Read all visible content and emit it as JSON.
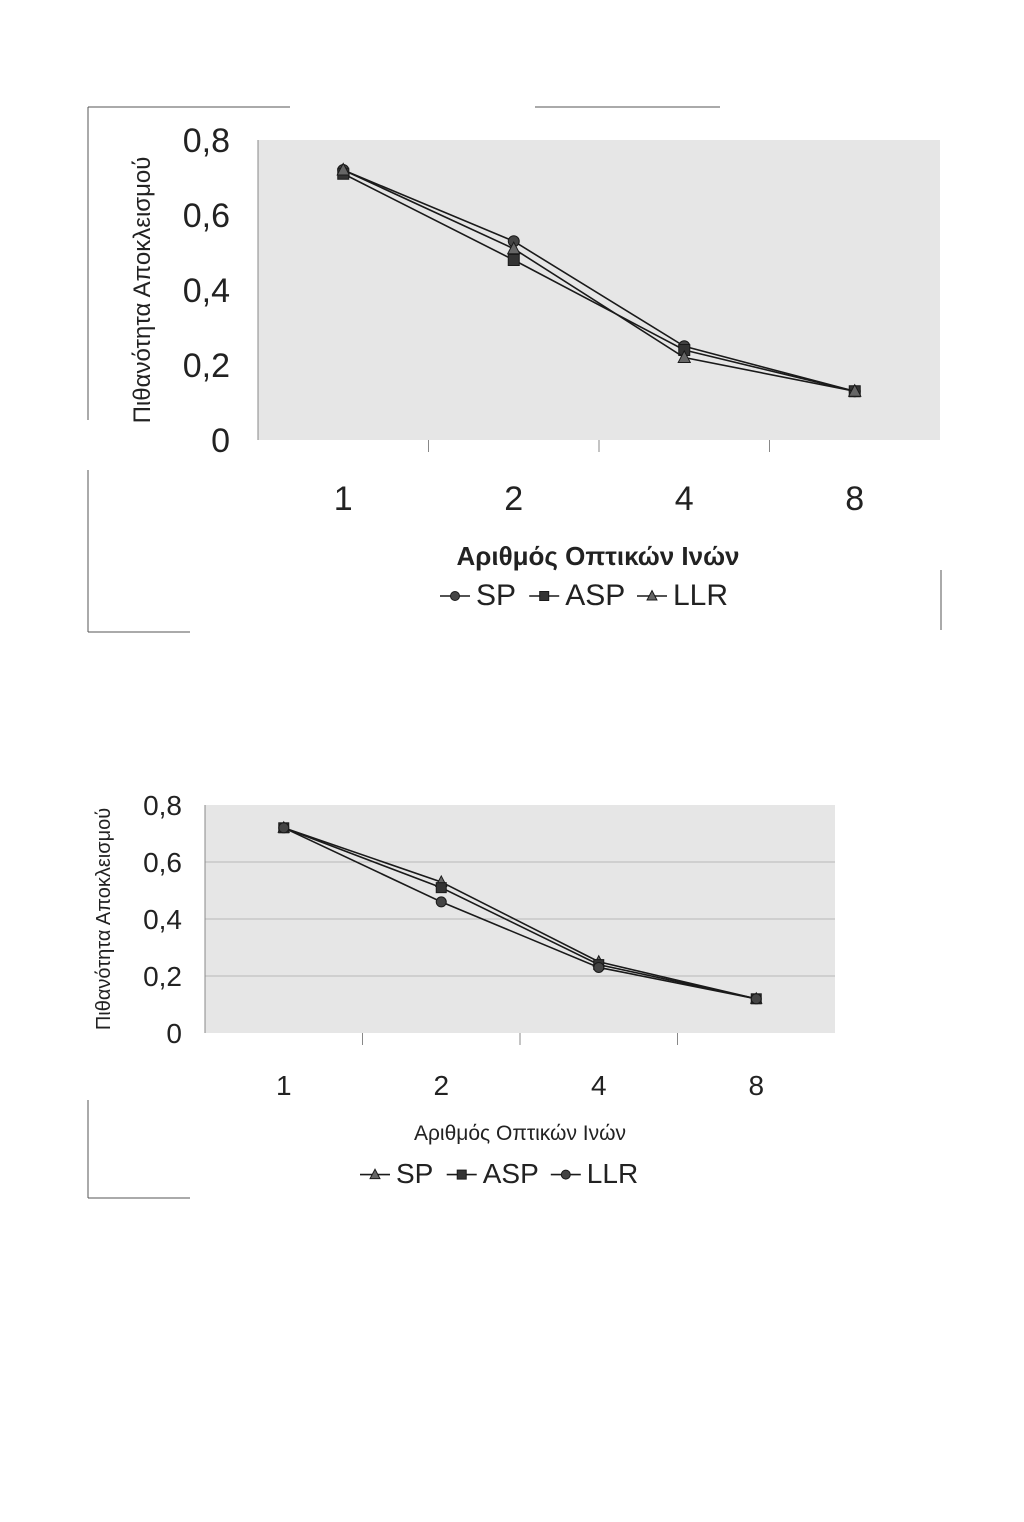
{
  "chart_data": [
    {
      "type": "line",
      "title": "",
      "xlabel": "Αριθμός Οπτικών Ινών",
      "ylabel": "Πιθανότητα Αποκλεισμού",
      "categories": [
        "1",
        "2",
        "4",
        "8"
      ],
      "ylim": [
        0,
        0.8
      ],
      "yticks": [
        "0",
        "0,2",
        "0,4",
        "0,6",
        "0,8"
      ],
      "grid": false,
      "legend_position": "bottom",
      "series": [
        {
          "name": "SP",
          "marker": "circle",
          "values": [
            0.72,
            0.53,
            0.25,
            0.13
          ]
        },
        {
          "name": "ASP",
          "marker": "square",
          "values": [
            0.71,
            0.48,
            0.24,
            0.13
          ]
        },
        {
          "name": "LLR",
          "marker": "triangle",
          "values": [
            0.72,
            0.51,
            0.22,
            0.13
          ]
        }
      ]
    },
    {
      "type": "line",
      "title": "",
      "xlabel": "Αριθμός Οπτικών Ινών",
      "ylabel": "Πιθανότητα Αποκλεισμού",
      "categories": [
        "1",
        "2",
        "4",
        "8"
      ],
      "ylim": [
        0,
        0.8
      ],
      "yticks": [
        "0",
        "0,2",
        "0,4",
        "0,6",
        "0,8"
      ],
      "grid": true,
      "legend_position": "bottom",
      "series": [
        {
          "name": "SP",
          "marker": "triangle",
          "values": [
            0.72,
            0.53,
            0.25,
            0.12
          ]
        },
        {
          "name": "ASP",
          "marker": "square",
          "values": [
            0.72,
            0.51,
            0.24,
            0.12
          ]
        },
        {
          "name": "LLR",
          "marker": "circle",
          "values": [
            0.72,
            0.46,
            0.23,
            0.12
          ]
        }
      ]
    }
  ],
  "colors": {
    "plot_background": "#e6e6e6",
    "line": "#1a1a1a",
    "text": "#222222",
    "gridline": "#b8b8b8"
  }
}
